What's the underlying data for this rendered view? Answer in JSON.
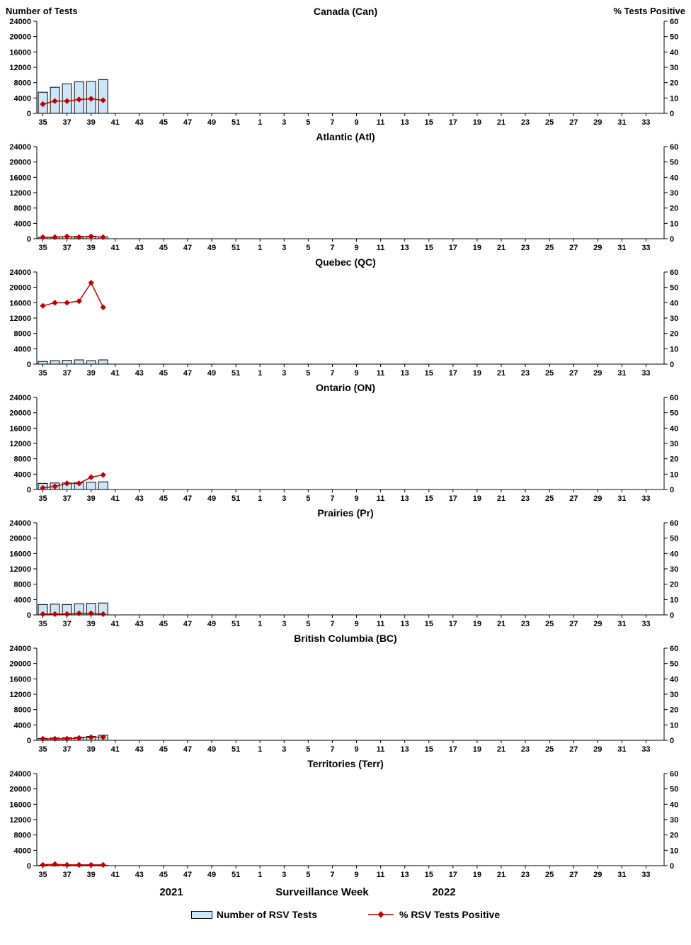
{
  "page": {
    "colors": {
      "bar_fill": "#cce6f7",
      "bar_border": "#000000",
      "line": "#c00000",
      "text": "#000000",
      "background": "#ffffff"
    }
  },
  "chart_data": {
    "type": "bar+line",
    "panel_layout": "7 vertically stacked panels, identical axes",
    "common": {
      "left_axis": {
        "title": "Number of Tests",
        "range": [
          0,
          24000
        ],
        "ticks": [
          0,
          4000,
          8000,
          12000,
          16000,
          20000,
          24000
        ]
      },
      "right_axis": {
        "title": "% Tests Positive",
        "range": [
          0,
          60
        ],
        "ticks": [
          0,
          10,
          20,
          30,
          40,
          50,
          60
        ]
      },
      "x_axis": {
        "title": "Surveillance Week",
        "weeks": [
          35,
          36,
          37,
          38,
          39,
          40,
          41,
          42,
          43,
          44,
          45,
          46,
          47,
          48,
          49,
          50,
          51,
          52,
          1,
          2,
          3,
          4,
          5,
          6,
          7,
          8,
          9,
          10,
          11,
          12,
          13,
          14,
          15,
          16,
          17,
          18,
          19,
          20,
          21,
          22,
          23,
          24,
          25,
          26,
          27,
          28,
          29,
          30,
          31,
          32,
          33,
          34
        ],
        "tick_labels": [
          "35",
          "37",
          "39",
          "41",
          "43",
          "45",
          "47",
          "49",
          "51",
          "1",
          "3",
          "5",
          "7",
          "9",
          "11",
          "13",
          "15",
          "17",
          "19",
          "21",
          "23",
          "25",
          "27",
          "29",
          "31",
          "33"
        ],
        "year_segments": [
          {
            "label": "2021",
            "weeks": "35-52"
          },
          {
            "label": "2022",
            "weeks": "1-34"
          }
        ]
      },
      "series": {
        "bars_name": "Number of RSV Tests",
        "line_name": "% RSV Tests Positive"
      },
      "data_weeks": [
        35,
        36,
        37,
        38,
        39,
        40
      ]
    },
    "panels": [
      {
        "title": "Canada (Can)",
        "tests": [
          5500,
          6800,
          7700,
          8200,
          8300,
          8800
        ],
        "pct_positive": [
          6,
          8,
          8,
          9,
          9.5,
          8.5
        ]
      },
      {
        "title": "Atlantic (Atl)",
        "tests": [
          350,
          450,
          550,
          600,
          650,
          500
        ],
        "pct_positive": [
          1,
          1,
          1.5,
          1,
          1.5,
          1
        ]
      },
      {
        "title": "Quebec (QC)",
        "tests": [
          700,
          900,
          1000,
          1100,
          900,
          1100
        ],
        "pct_positive": [
          38,
          40,
          40,
          41,
          53,
          37
        ]
      },
      {
        "title": "Ontario (ON)",
        "tests": [
          1600,
          1700,
          1700,
          1800,
          1900,
          2000
        ],
        "pct_positive": [
          1,
          2,
          4,
          4,
          8,
          9.5
        ]
      },
      {
        "title": "Prairies (Pr)",
        "tests": [
          2700,
          2800,
          2700,
          2900,
          3000,
          3100
        ],
        "pct_positive": [
          0.5,
          0.5,
          0.5,
          1,
          1,
          0.5
        ]
      },
      {
        "title": "British Columbia (BC)",
        "tests": [
          500,
          600,
          650,
          800,
          1000,
          1300
        ],
        "pct_positive": [
          1,
          1,
          1,
          1.5,
          2,
          2
        ]
      },
      {
        "title": "Territories (Terr)",
        "tests": [
          40,
          50,
          40,
          50,
          50,
          50
        ],
        "pct_positive": [
          0.5,
          1,
          0.5,
          0.5,
          0.5,
          0.5
        ]
      }
    ]
  }
}
